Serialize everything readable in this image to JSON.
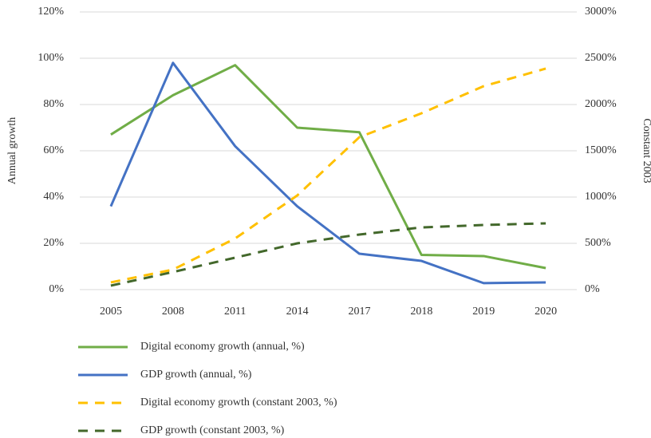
{
  "chart_data": {
    "type": "line",
    "categories": [
      "2005",
      "2008",
      "2011",
      "2014",
      "2017",
      "2018",
      "2019",
      "2020"
    ],
    "y_label": "Annual growth",
    "y2_label": "Constant 2003",
    "ylim": [
      0,
      120
    ],
    "yticks": [
      {
        "value": 0,
        "label": "0%"
      },
      {
        "value": 20,
        "label": "20%"
      },
      {
        "value": 40,
        "label": "40%"
      },
      {
        "value": 60,
        "label": "60%"
      },
      {
        "value": 80,
        "label": "80%"
      },
      {
        "value": 100,
        "label": "100%"
      },
      {
        "value": 120,
        "label": "120%"
      }
    ],
    "y2lim": [
      0,
      3000
    ],
    "y2ticks": [
      {
        "value": 0,
        "label": "0%"
      },
      {
        "value": 500,
        "label": "500%"
      },
      {
        "value": 1000,
        "label": "1000%"
      },
      {
        "value": 1500,
        "label": "1500%"
      },
      {
        "value": 2000,
        "label": "2000%"
      },
      {
        "value": 2500,
        "label": "2500%"
      },
      {
        "value": 3000,
        "label": "3000%"
      }
    ],
    "grid": true,
    "legend": "bottom",
    "series": [
      {
        "name": "Digital economy growth (annual, %)",
        "color": "#70ad47",
        "dashed": false,
        "values": [
          67,
          84,
          97,
          70,
          68,
          15,
          14.5,
          9.3
        ]
      },
      {
        "name": "GDP growth (annual, %)",
        "color": "#4472c4",
        "dashed": false,
        "values": [
          36,
          98,
          62,
          36,
          15.5,
          12.4,
          2.8,
          3.1
        ]
      },
      {
        "name": "Digital economy growth (constant 2003, %)",
        "color": "#ffc000",
        "dashed": true,
        "axis": "y2",
        "values": [
          78,
          216,
          552,
          1017,
          1647,
          1905,
          2198,
          2388
        ]
      },
      {
        "name": "GDP growth (constant 2003, %)",
        "color": "#43682b",
        "dashed": true,
        "axis": "y2",
        "values": [
          43,
          190,
          345,
          500,
          595,
          672,
          698,
          716
        ]
      }
    ]
  }
}
